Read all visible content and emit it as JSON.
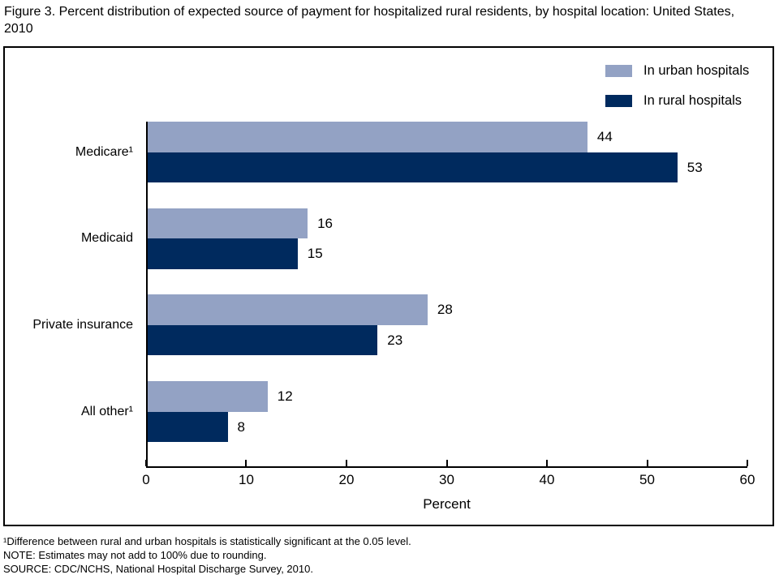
{
  "title": "Figure 3. Percent distribution of expected source of payment for hospitalized rural residents, by hospital location: United States, 2010",
  "chart_data": {
    "type": "bar",
    "orientation": "horizontal",
    "title": "Figure 3. Percent distribution of expected source of payment for hospitalized rural residents, by hospital location: United States, 2010",
    "categories": [
      "Medicare¹",
      "Medicaid",
      "Private insurance",
      "All other¹"
    ],
    "series": [
      {
        "name": "In urban hospitals",
        "color": "#93A2C4",
        "values": [
          44,
          16,
          28,
          12
        ]
      },
      {
        "name": "In rural hospitals",
        "color": "#002A5E",
        "values": [
          53,
          15,
          23,
          8
        ]
      }
    ],
    "xlabel": "Percent",
    "ylabel": "",
    "xlim": [
      0,
      60
    ],
    "xticks": [
      0,
      10,
      20,
      30,
      40,
      50,
      60
    ],
    "grid": false,
    "legend_position": "top-right",
    "value_labels": true
  },
  "footnotes": [
    "¹Difference between rural and urban hospitals is statistically significant at the 0.05 level.",
    "NOTE: Estimates may not add to 100% due to rounding.",
    "SOURCE: CDC/NCHS, National Hospital Discharge Survey, 2010."
  ]
}
